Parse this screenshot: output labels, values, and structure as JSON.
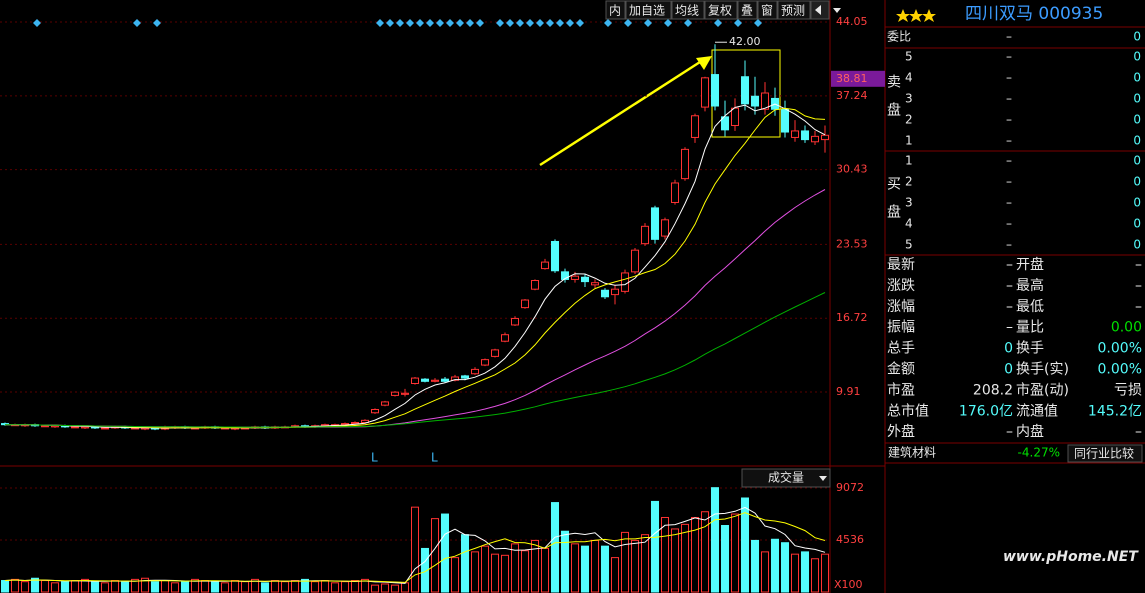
{
  "toolbar": [
    "内",
    "加自选",
    "均线",
    "复权",
    "叠",
    "窗",
    "预测"
  ],
  "price_chart": {
    "ylim": [
      3.18,
      46.08
    ],
    "yticks": [
      44.05,
      37.24,
      30.43,
      23.53,
      16.72,
      9.91
    ],
    "current_price": 38.81,
    "high_label": "42.00",
    "signals": [
      "L",
      "L"
    ],
    "colors": {
      "up": "#ff3232",
      "down": "#54fcfc"
    },
    "candles": [
      [
        7.0,
        6.9,
        7.1,
        6.8
      ],
      [
        6.9,
        6.9,
        7.0,
        6.8
      ],
      [
        6.8,
        6.9,
        7.0,
        6.7
      ],
      [
        6.9,
        6.8,
        7.0,
        6.7
      ],
      [
        6.8,
        6.8,
        6.9,
        6.7
      ],
      [
        6.7,
        6.8,
        6.9,
        6.6
      ],
      [
        6.8,
        6.7,
        6.9,
        6.6
      ],
      [
        6.7,
        6.7,
        6.8,
        6.6
      ],
      [
        6.6,
        6.7,
        6.8,
        6.5
      ],
      [
        6.7,
        6.6,
        6.8,
        6.5
      ],
      [
        6.6,
        6.6,
        6.7,
        6.5
      ],
      [
        6.6,
        6.7,
        6.8,
        6.5
      ],
      [
        6.7,
        6.6,
        6.8,
        6.5
      ],
      [
        6.6,
        6.6,
        6.7,
        6.5
      ],
      [
        6.5,
        6.6,
        6.7,
        6.4
      ],
      [
        6.6,
        6.5,
        6.7,
        6.4
      ],
      [
        6.5,
        6.6,
        6.8,
        6.4
      ],
      [
        6.6,
        6.7,
        6.8,
        6.5
      ],
      [
        6.7,
        6.6,
        6.8,
        6.5
      ],
      [
        6.6,
        6.6,
        6.7,
        6.5
      ],
      [
        6.6,
        6.7,
        6.8,
        6.5
      ],
      [
        6.7,
        6.6,
        6.8,
        6.5
      ],
      [
        6.6,
        6.6,
        6.7,
        6.5
      ],
      [
        6.5,
        6.6,
        6.7,
        6.4
      ],
      [
        6.6,
        6.6,
        6.7,
        6.5
      ],
      [
        6.6,
        6.7,
        6.8,
        6.5
      ],
      [
        6.7,
        6.6,
        6.8,
        6.5
      ],
      [
        6.6,
        6.7,
        6.8,
        6.5
      ],
      [
        6.7,
        6.7,
        6.8,
        6.6
      ],
      [
        6.7,
        6.8,
        6.9,
        6.6
      ],
      [
        6.8,
        6.7,
        6.9,
        6.6
      ],
      [
        6.7,
        6.8,
        6.9,
        6.6
      ],
      [
        6.8,
        6.9,
        7.0,
        6.7
      ],
      [
        6.9,
        6.9,
        7.0,
        6.8
      ],
      [
        6.9,
        7.0,
        7.1,
        6.8
      ],
      [
        7.0,
        7.1,
        7.2,
        6.9
      ],
      [
        7.1,
        7.3,
        7.4,
        7.0
      ],
      [
        8.0,
        8.3,
        8.4,
        7.9
      ],
      [
        8.7,
        9.0,
        9.1,
        8.6
      ],
      [
        9.6,
        9.9,
        10.0,
        9.5
      ],
      [
        9.7,
        9.8,
        10.2,
        9.5
      ],
      [
        10.7,
        11.2,
        11.3,
        10.6
      ],
      [
        11.1,
        10.9,
        11.2,
        10.8
      ],
      [
        10.9,
        11.0,
        11.2,
        10.8
      ],
      [
        11.1,
        10.9,
        11.3,
        10.8
      ],
      [
        11.0,
        11.3,
        11.5,
        10.9
      ],
      [
        11.4,
        11.2,
        11.5,
        11.0
      ],
      [
        11.6,
        12.0,
        12.2,
        11.5
      ],
      [
        12.4,
        12.9,
        13.0,
        12.3
      ],
      [
        13.2,
        13.8,
        13.9,
        13.1
      ],
      [
        14.6,
        15.2,
        15.4,
        14.5
      ],
      [
        16.1,
        16.7,
        16.9,
        16.0
      ],
      [
        17.7,
        18.4,
        18.5,
        17.6
      ],
      [
        19.4,
        20.2,
        20.3,
        19.3
      ],
      [
        21.3,
        21.9,
        22.2,
        21.2
      ],
      [
        23.8,
        21.1,
        24.0,
        20.9
      ],
      [
        21.0,
        20.3,
        21.3,
        20.0
      ],
      [
        20.3,
        20.6,
        21.0,
        20.0
      ],
      [
        20.5,
        20.1,
        20.8,
        19.6
      ],
      [
        19.8,
        20.0,
        20.3,
        19.5
      ],
      [
        19.3,
        18.7,
        19.5,
        18.5
      ],
      [
        18.9,
        19.4,
        19.8,
        18.0
      ],
      [
        19.2,
        20.9,
        21.2,
        19.0
      ],
      [
        21.0,
        23.0,
        23.2,
        20.8
      ],
      [
        23.6,
        25.2,
        25.5,
        23.4
      ],
      [
        26.9,
        24.0,
        27.1,
        23.6
      ],
      [
        24.3,
        25.8,
        26.0,
        24.0
      ],
      [
        27.4,
        29.2,
        29.5,
        27.2
      ],
      [
        29.6,
        32.3,
        32.5,
        29.4
      ],
      [
        33.4,
        35.4,
        35.6,
        32.9
      ],
      [
        36.2,
        38.9,
        39.0,
        35.8
      ],
      [
        39.2,
        36.3,
        42.0,
        35.9
      ],
      [
        35.3,
        34.1,
        36.8,
        33.5
      ],
      [
        34.5,
        36.1,
        37.0,
        34.0
      ],
      [
        39.0,
        36.5,
        40.5,
        35.9
      ],
      [
        37.2,
        36.3,
        39.0,
        35.5
      ],
      [
        36.0,
        37.5,
        38.5,
        35.5
      ],
      [
        37.0,
        36.0,
        38.0,
        35.4
      ],
      [
        36.0,
        33.9,
        36.8,
        33.4
      ],
      [
        33.4,
        34.0,
        35.0,
        33.0
      ],
      [
        34.0,
        33.2,
        34.5,
        32.9
      ],
      [
        33.0,
        33.5,
        34.0,
        32.7
      ],
      [
        33.2,
        33.6,
        34.5,
        32.0
      ]
    ]
  },
  "volume_chart": {
    "label": "成交量",
    "ylim": [
      0,
      10642
    ],
    "yticks": [
      9072,
      4536
    ],
    "unit": "X100",
    "values": [
      1000,
      1100,
      900,
      1200,
      1000,
      800,
      900,
      1000,
      1100,
      900,
      800,
      1000,
      900,
      1100,
      1200,
      900,
      1000,
      800,
      900,
      1100,
      1000,
      900,
      800,
      1000,
      900,
      1100,
      800,
      1000,
      900,
      1000,
      1100,
      900,
      1000,
      800,
      900,
      1000,
      1100,
      600,
      700,
      600,
      800,
      7400,
      3800,
      6400,
      6800,
      3000,
      5000,
      3500,
      4000,
      3300,
      3200,
      4200,
      3600,
      4500,
      3800,
      7800,
      5300,
      4200,
      4000,
      4500,
      4000,
      3000,
      5200,
      4500,
      5000,
      7900,
      6500,
      5500,
      5900,
      6500,
      7000,
      9100,
      5800,
      6800,
      8200,
      4500,
      3500,
      4600,
      4300,
      3300,
      3500,
      2900,
      3300
    ]
  },
  "quote": {
    "name": "四川双马 000935",
    "weibi": {
      "label": "委比",
      "price": "–",
      "qty": "0"
    },
    "sell_label": "卖盘",
    "sell": [
      {
        "level": "5",
        "price": "–",
        "qty": "0"
      },
      {
        "level": "4",
        "price": "–",
        "qty": "0"
      },
      {
        "level": "3",
        "price": "–",
        "qty": "0"
      },
      {
        "level": "2",
        "price": "–",
        "qty": "0"
      },
      {
        "level": "1",
        "price": "–",
        "qty": "0"
      }
    ],
    "buy_label": "买盘",
    "buy": [
      {
        "level": "1",
        "price": "–",
        "qty": "0"
      },
      {
        "level": "2",
        "price": "–",
        "qty": "0"
      },
      {
        "level": "3",
        "price": "–",
        "qty": "0"
      },
      {
        "level": "4",
        "price": "–",
        "qty": "0"
      },
      {
        "level": "5",
        "price": "–",
        "qty": "0"
      }
    ],
    "stats": [
      [
        "最新",
        "–",
        "开盘",
        "–"
      ],
      [
        "涨跌",
        "–",
        "最高",
        "–"
      ],
      [
        "涨幅",
        "–",
        "最低",
        "–"
      ],
      [
        "振幅",
        "–",
        "量比",
        "0.00"
      ],
      [
        "总手",
        "0",
        "换手",
        "0.00%"
      ],
      [
        "金额",
        "0",
        "换手(实)",
        "0.00%"
      ],
      [
        "市盈",
        "208.2",
        "市盈(动)",
        "亏损"
      ],
      [
        "总市值",
        "176.0亿",
        "流通值",
        "145.2亿"
      ],
      [
        "外盘",
        "–",
        "内盘",
        "–"
      ]
    ],
    "industry": {
      "name": "建筑材料",
      "change": "-4.27%",
      "button": "同行业比较"
    }
  },
  "watermark": "www.pHome.NET"
}
